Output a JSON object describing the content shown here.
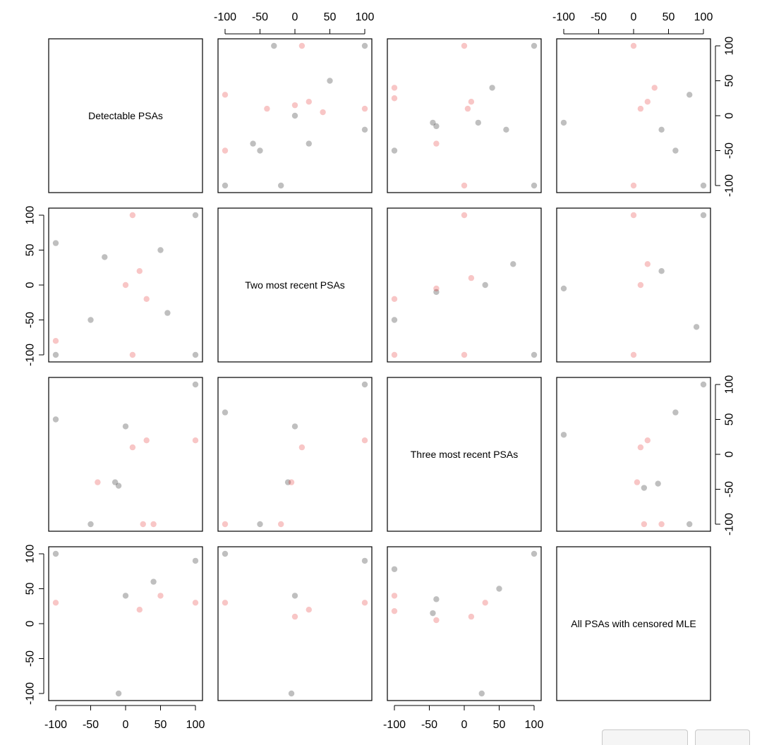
{
  "chart_data": {
    "type": "scatter",
    "variables": [
      "Detectable PSAs",
      "Two most recent PSAs",
      "Three most recent PSAs",
      "All PSAs with censored MLE"
    ],
    "axis_range": [
      -100,
      100
    ],
    "ticks": [
      -100,
      -50,
      0,
      50,
      100
    ],
    "tick_labels": [
      "-100",
      "-50",
      "0",
      "50",
      "100"
    ],
    "colors": {
      "black": "#000000",
      "red": "#e41a1c"
    },
    "point_opacity": 0.25,
    "grid": false,
    "series": [
      {
        "color": "black"
      },
      {
        "color": "red"
      }
    ],
    "panels": [
      {
        "row": 1,
        "col": 2,
        "x_var": "Two most recent PSAs",
        "y_var": "Detectable PSAs",
        "black": [
          [
            100,
            100
          ],
          [
            50,
            50
          ],
          [
            0,
            0
          ],
          [
            -50,
            -50
          ],
          [
            -100,
            -100
          ],
          [
            -30,
            100
          ],
          [
            -20,
            -100
          ],
          [
            100,
            -20
          ],
          [
            20,
            -40
          ],
          [
            -60,
            -40
          ]
        ],
        "red": [
          [
            100,
            10
          ],
          [
            -100,
            30
          ],
          [
            0,
            15
          ],
          [
            20,
            20
          ],
          [
            -40,
            10
          ],
          [
            40,
            5
          ],
          [
            10,
            100
          ],
          [
            -100,
            -50
          ]
        ]
      },
      {
        "row": 1,
        "col": 3,
        "x_var": "Three most recent PSAs",
        "y_var": "Detectable PSAs",
        "black": [
          [
            -45,
            -10
          ],
          [
            -40,
            -15
          ],
          [
            -100,
            -50
          ],
          [
            20,
            -10
          ],
          [
            60,
            -20
          ],
          [
            100,
            -100
          ],
          [
            100,
            100
          ],
          [
            40,
            40
          ]
        ],
        "red": [
          [
            -100,
            40
          ],
          [
            -100,
            25
          ],
          [
            -40,
            -40
          ],
          [
            10,
            20
          ],
          [
            5,
            10
          ],
          [
            0,
            -100
          ],
          [
            0,
            100
          ]
        ]
      },
      {
        "row": 1,
        "col": 4,
        "x_var": "All PSAs with censored MLE",
        "y_var": "Detectable PSAs",
        "black": [
          [
            -100,
            -10
          ],
          [
            40,
            -20
          ],
          [
            80,
            30
          ],
          [
            100,
            -100
          ],
          [
            60,
            -50
          ]
        ],
        "red": [
          [
            20,
            20
          ],
          [
            10,
            10
          ],
          [
            30,
            40
          ],
          [
            0,
            100
          ],
          [
            0,
            -100
          ]
        ]
      },
      {
        "row": 2,
        "col": 1,
        "x_var": "Detectable PSAs",
        "y_var": "Two most recent PSAs",
        "black": [
          [
            -100,
            -100
          ],
          [
            -50,
            -50
          ],
          [
            50,
            50
          ],
          [
            100,
            100
          ],
          [
            -30,
            40
          ],
          [
            60,
            -40
          ],
          [
            -100,
            60
          ],
          [
            100,
            -100
          ]
        ],
        "red": [
          [
            0,
            0
          ],
          [
            20,
            20
          ],
          [
            10,
            100
          ],
          [
            10,
            -100
          ],
          [
            -100,
            -80
          ],
          [
            30,
            -20
          ]
        ]
      },
      {
        "row": 2,
        "col": 3,
        "x_var": "Three most recent PSAs",
        "y_var": "Two most recent PSAs",
        "black": [
          [
            -100,
            -50
          ],
          [
            -40,
            -10
          ],
          [
            30,
            0
          ],
          [
            70,
            30
          ],
          [
            100,
            -100
          ]
        ],
        "red": [
          [
            -100,
            -20
          ],
          [
            -100,
            -100
          ],
          [
            -40,
            -5
          ],
          [
            10,
            10
          ],
          [
            0,
            100
          ],
          [
            0,
            -100
          ]
        ]
      },
      {
        "row": 2,
        "col": 4,
        "x_var": "All PSAs with censored MLE",
        "y_var": "Two most recent PSAs",
        "black": [
          [
            -100,
            -5
          ],
          [
            40,
            20
          ],
          [
            90,
            -60
          ],
          [
            100,
            100
          ]
        ],
        "red": [
          [
            10,
            0
          ],
          [
            20,
            30
          ],
          [
            0,
            100
          ],
          [
            0,
            -100
          ]
        ]
      },
      {
        "row": 3,
        "col": 1,
        "x_var": "Detectable PSAs",
        "y_var": "Three most recent PSAs",
        "black": [
          [
            -50,
            -100
          ],
          [
            -10,
            -45
          ],
          [
            -15,
            -40
          ],
          [
            0,
            40
          ],
          [
            100,
            100
          ],
          [
            -100,
            50
          ]
        ],
        "red": [
          [
            -40,
            -40
          ],
          [
            25,
            -100
          ],
          [
            40,
            -100
          ],
          [
            10,
            10
          ],
          [
            30,
            20
          ],
          [
            100,
            20
          ]
        ]
      },
      {
        "row": 3,
        "col": 2,
        "x_var": "Two most recent PSAs",
        "y_var": "Three most recent PSAs",
        "black": [
          [
            -50,
            -100
          ],
          [
            -10,
            -40
          ],
          [
            0,
            40
          ],
          [
            100,
            100
          ],
          [
            -100,
            60
          ]
        ],
        "red": [
          [
            -100,
            -100
          ],
          [
            -20,
            -100
          ],
          [
            -5,
            -40
          ],
          [
            10,
            10
          ],
          [
            100,
            20
          ]
        ]
      },
      {
        "row": 3,
        "col": 4,
        "x_var": "All PSAs with censored MLE",
        "y_var": "Three most recent PSAs",
        "black": [
          [
            -100,
            28
          ],
          [
            15,
            -48
          ],
          [
            35,
            -42
          ],
          [
            80,
            -100
          ],
          [
            100,
            100
          ],
          [
            60,
            60
          ]
        ],
        "red": [
          [
            5,
            -40
          ],
          [
            15,
            -100
          ],
          [
            40,
            -100
          ],
          [
            20,
            20
          ],
          [
            10,
            10
          ]
        ]
      },
      {
        "row": 4,
        "col": 1,
        "x_var": "Detectable PSAs",
        "y_var": "All PSAs with censored MLE",
        "black": [
          [
            -10,
            -100
          ],
          [
            -100,
            100
          ],
          [
            0,
            40
          ],
          [
            40,
            60
          ],
          [
            100,
            90
          ]
        ],
        "red": [
          [
            20,
            20
          ],
          [
            50,
            40
          ],
          [
            -100,
            30
          ],
          [
            100,
            30
          ]
        ]
      },
      {
        "row": 4,
        "col": 2,
        "x_var": "Two most recent PSAs",
        "y_var": "All PSAs with censored MLE",
        "black": [
          [
            -5,
            -100
          ],
          [
            -100,
            100
          ],
          [
            0,
            40
          ],
          [
            100,
            90
          ]
        ],
        "red": [
          [
            0,
            10
          ],
          [
            20,
            20
          ],
          [
            -100,
            30
          ],
          [
            100,
            30
          ]
        ]
      },
      {
        "row": 4,
        "col": 3,
        "x_var": "Three most recent PSAs",
        "y_var": "All PSAs with censored MLE",
        "black": [
          [
            -100,
            78
          ],
          [
            -45,
            15
          ],
          [
            -40,
            35
          ],
          [
            25,
            -100
          ],
          [
            100,
            100
          ],
          [
            50,
            50
          ]
        ],
        "red": [
          [
            -100,
            40
          ],
          [
            -100,
            18
          ],
          [
            -40,
            5
          ],
          [
            10,
            10
          ],
          [
            30,
            30
          ]
        ]
      }
    ]
  }
}
